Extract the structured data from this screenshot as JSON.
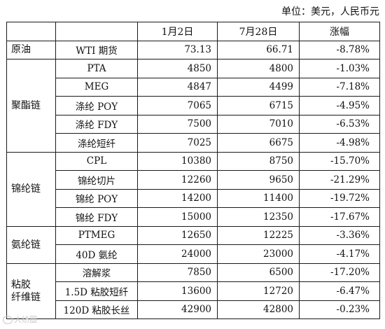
{
  "unit_label": "单位：美元，人民币元",
  "headers": [
    "",
    "",
    "1月2日",
    "7月28日",
    "涨幅"
  ],
  "groups": [
    {
      "category": "原油",
      "rows": [
        {
          "product": "WTI 期货",
          "jan2": "73.13",
          "jul28": "66.71",
          "change": "-8.78%"
        }
      ]
    },
    {
      "category": "聚酯链",
      "rows": [
        {
          "product": "PTA",
          "jan2": "4850",
          "jul28": "4800",
          "change": "-1.03%"
        },
        {
          "product": "MEG",
          "jan2": "4847",
          "jul28": "4499",
          "change": "-7.18%"
        },
        {
          "product": "涤纶 POY",
          "jan2": "7065",
          "jul28": "6715",
          "change": "-4.95%"
        },
        {
          "product": "涤纶 FDY",
          "jan2": "7500",
          "jul28": "7010",
          "change": "-6.53%"
        },
        {
          "product": "涤纶短纤",
          "jan2": "7025",
          "jul28": "6675",
          "change": "-4.98%"
        }
      ]
    },
    {
      "category": "锦纶链",
      "rows": [
        {
          "product": "CPL",
          "jan2": "10380",
          "jul28": "8750",
          "change": "-15.70%"
        },
        {
          "product": "锦纶切片",
          "jan2": "12260",
          "jul28": "9650",
          "change": "-21.29%"
        },
        {
          "product": "锦纶 POY",
          "jan2": "14200",
          "jul28": "11400",
          "change": "-19.72%"
        },
        {
          "product": "锦纶 FDY",
          "jan2": "15000",
          "jul28": "12350",
          "change": "-17.67%"
        }
      ]
    },
    {
      "category": "氨纶链",
      "rows": [
        {
          "product": "PTMEG",
          "jan2": "12650",
          "jul28": "12225",
          "change": "-3.36%"
        },
        {
          "product": "40D 氨纶",
          "jan2": "24000",
          "jul28": "23000",
          "change": "-4.17%"
        }
      ]
    },
    {
      "category": "粘胶\n纤维链",
      "rows": [
        {
          "product": "溶解浆",
          "jan2": "7850",
          "jul28": "6500",
          "change": "-17.20%"
        },
        {
          "product": "1.5D 粘胶短纤",
          "jan2": "13600",
          "jul28": "12720",
          "change": "-6.47%"
        },
        {
          "product": "120D 粘胶长丝",
          "jan2": "42900",
          "jul28": "42800",
          "change": "-0.23%"
        }
      ]
    }
  ],
  "watermark": "大纺圈"
}
